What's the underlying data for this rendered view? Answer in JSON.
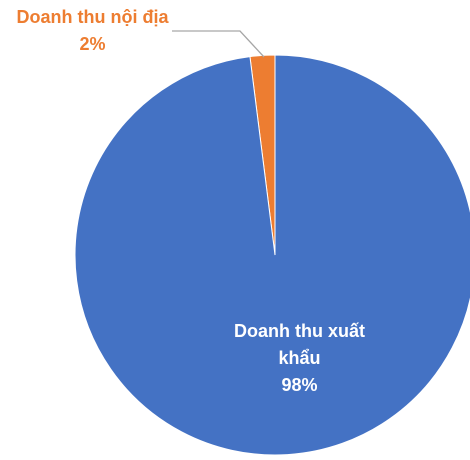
{
  "chart_data": {
    "type": "pie",
    "categories": [
      "Doanh thu xuất khẩu",
      "Doanh thu nội địa"
    ],
    "values": [
      98,
      2
    ],
    "value_labels": [
      "98%",
      "2%"
    ],
    "colors": [
      "#4472c4",
      "#ed7d31"
    ]
  }
}
